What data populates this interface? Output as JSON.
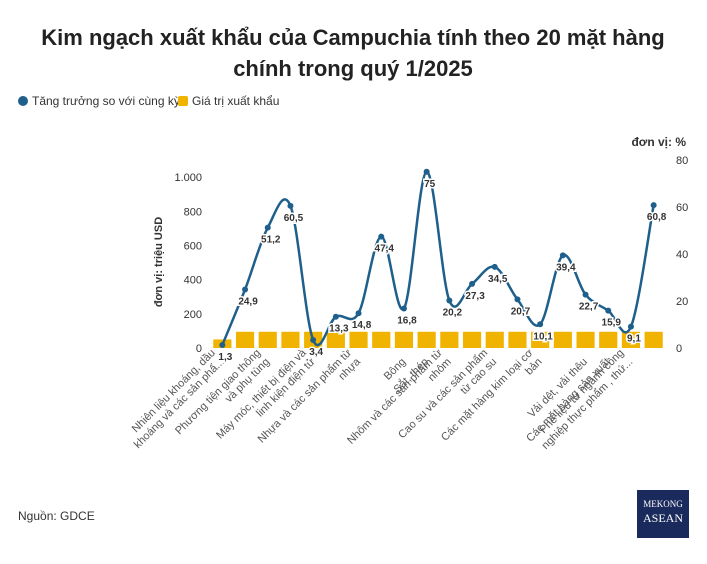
{
  "chart_data": {
    "type": "bar_line",
    "title": [
      "Kim ngạch xuất khẩu của Campuchia tính theo 20 mặt hàng",
      "chính trong quý 1/2025"
    ],
    "y_label": "đơn vị: triệu USD",
    "y2_label": "đơn vị: %",
    "categories": [
      "Nhiên liệu khoáng, dầu\nkhoáng và các sản phẩ...",
      null,
      "Phương tiện giao thông\nvà phụ tùng",
      null,
      "Máy móc, thiết bị điện và\nlinh kiện điện tử",
      null,
      "Nhựa và các sản phẩm từ\nnhựa",
      null,
      "Bông",
      "Sắt, thép",
      "Nhôm và các sản phẩm từ\nnhôm",
      null,
      "Cao su và các sản phẩm\ntừ cao su",
      null,
      "Các mặt hàng kim loại cơ\nbản",
      null,
      "Vải dệt, vải thêu",
      "Các mặt hàng sản xuất",
      "Phế liệu từ ngành công\nnghiệp thực phẩm , thứ...",
      null
    ],
    "series": [
      {
        "name": "Tăng trưởng so với cùng kỳ",
        "color": "#1f5f8b",
        "axis": "y2",
        "kind": "line",
        "values": [
          1.3,
          24.9,
          51.2,
          60.5,
          3.4,
          13.3,
          14.8,
          47.4,
          16.8,
          75,
          20.2,
          27.3,
          34.5,
          20.7,
          10.1,
          39.4,
          22.7,
          15.9,
          9.1,
          60.8
        ],
        "value_labels": [
          "1,3",
          "24,9",
          "51,2",
          "60,5",
          "3,4",
          "13,3",
          "14,8",
          "47,4",
          "16,8",
          "75",
          "20,2",
          "27,3",
          "34,5",
          "20,7",
          "10,1",
          "39,4",
          "22,7",
          "15,9",
          "9,1",
          "60,8"
        ]
      },
      {
        "name": "Giá trị xuất khẩu",
        "color": "#f0b400",
        "kind": "bar",
        "values": [
          50,
          95,
          95,
          95,
          95,
          95,
          95,
          95,
          95,
          95,
          95,
          95,
          95,
          95,
          95,
          95,
          95,
          95,
          95,
          95
        ]
      }
    ],
    "ylim": [
      0,
      1100
    ],
    "yticks": [
      0,
      200,
      400,
      600,
      800,
      {
        "value": 1000,
        "label": "1.000"
      }
    ],
    "y2lim": [
      0,
      80
    ],
    "y2ticks": [
      0,
      20,
      40,
      60,
      80
    ],
    "source": "Nguồn: GDCE",
    "logo": [
      "MEKONG",
      "ASEAN"
    ]
  }
}
